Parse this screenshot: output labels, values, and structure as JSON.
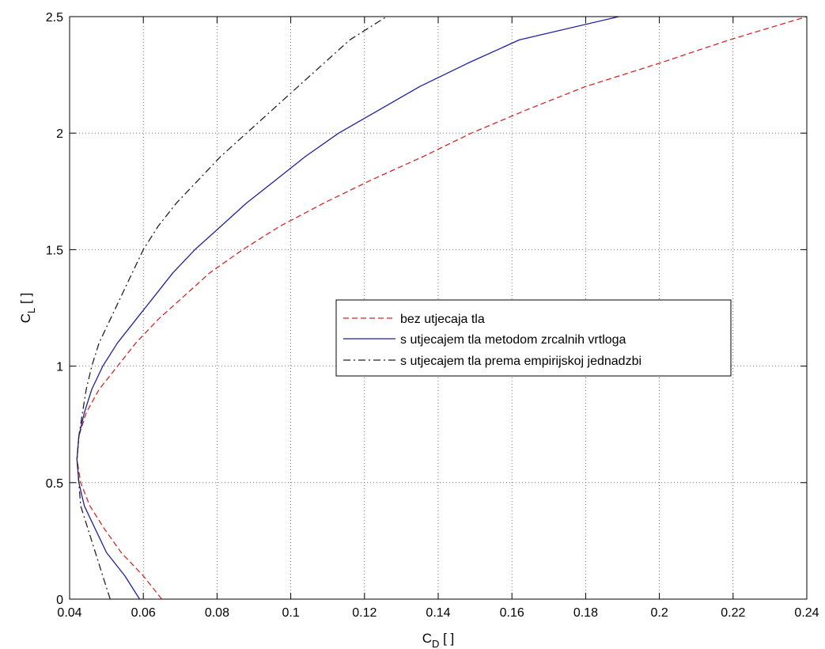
{
  "chart_data": {
    "type": "line",
    "title": "",
    "xlabel": {
      "main": "C",
      "sub": "D",
      "unit": " [ ]"
    },
    "ylabel": {
      "main": "C",
      "sub": "L",
      "unit": " [ ]"
    },
    "xlim": [
      0.04,
      0.24
    ],
    "ylim": [
      0,
      2.5
    ],
    "xticks": [
      0.04,
      0.06,
      0.08,
      0.1,
      0.12,
      0.14,
      0.16,
      0.18,
      0.2,
      0.22,
      0.24
    ],
    "xtick_labels": [
      "0.04",
      "0.06",
      "0.08",
      "0.1",
      "0.12",
      "0.14",
      "0.16",
      "0.18",
      "0.2",
      "0.22",
      "0.24"
    ],
    "yticks": [
      0,
      0.5,
      1,
      1.5,
      2,
      2.5
    ],
    "ytick_labels": [
      "0",
      "0.5",
      "1",
      "1.5",
      "2",
      "2.5"
    ],
    "grid": true,
    "legend_position": "center-right",
    "series": [
      {
        "name": "bez utjecaja tla",
        "color": "#d62728",
        "style": "dashed",
        "points": [
          [
            0.065,
            0
          ],
          [
            0.06,
            0.1
          ],
          [
            0.054,
            0.2
          ],
          [
            0.0495,
            0.3
          ],
          [
            0.0455,
            0.4
          ],
          [
            0.043,
            0.5
          ],
          [
            0.042,
            0.6
          ],
          [
            0.0425,
            0.7
          ],
          [
            0.0445,
            0.8
          ],
          [
            0.048,
            0.9
          ],
          [
            0.053,
            1.0
          ],
          [
            0.058,
            1.1
          ],
          [
            0.064,
            1.2
          ],
          [
            0.071,
            1.3
          ],
          [
            0.078,
            1.4
          ],
          [
            0.087,
            1.5
          ],
          [
            0.097,
            1.6
          ],
          [
            0.109,
            1.7
          ],
          [
            0.122,
            1.8
          ],
          [
            0.136,
            1.9
          ],
          [
            0.149,
            2.0
          ],
          [
            0.164,
            2.1
          ],
          [
            0.18,
            2.2
          ],
          [
            0.2,
            2.3
          ],
          [
            0.219,
            2.4
          ],
          [
            0.24,
            2.5
          ]
        ]
      },
      {
        "name": "s utjecajem tla metodom zrcalnih vrtloga",
        "color": "#1f1fa0",
        "style": "solid",
        "points": [
          [
            0.059,
            0
          ],
          [
            0.055,
            0.1
          ],
          [
            0.05,
            0.2
          ],
          [
            0.047,
            0.3
          ],
          [
            0.044,
            0.4
          ],
          [
            0.0425,
            0.5
          ],
          [
            0.042,
            0.6
          ],
          [
            0.0425,
            0.7
          ],
          [
            0.044,
            0.8
          ],
          [
            0.046,
            0.9
          ],
          [
            0.049,
            1.0
          ],
          [
            0.053,
            1.1
          ],
          [
            0.058,
            1.2
          ],
          [
            0.063,
            1.3
          ],
          [
            0.068,
            1.4
          ],
          [
            0.074,
            1.5
          ],
          [
            0.081,
            1.6
          ],
          [
            0.088,
            1.7
          ],
          [
            0.096,
            1.8
          ],
          [
            0.104,
            1.9
          ],
          [
            0.113,
            2.0
          ],
          [
            0.124,
            2.1
          ],
          [
            0.135,
            2.2
          ],
          [
            0.148,
            2.3
          ],
          [
            0.162,
            2.4
          ],
          [
            0.189,
            2.5
          ]
        ]
      },
      {
        "name": "s utjecajem tla prema empirijskoj jednadzbi",
        "color": "#222222",
        "style": "dashdot",
        "points": [
          [
            0.051,
            0
          ],
          [
            0.049,
            0.1
          ],
          [
            0.047,
            0.2
          ],
          [
            0.045,
            0.3
          ],
          [
            0.043,
            0.4
          ],
          [
            0.0425,
            0.5
          ],
          [
            0.042,
            0.6
          ],
          [
            0.0425,
            0.7
          ],
          [
            0.0435,
            0.8
          ],
          [
            0.0445,
            0.9
          ],
          [
            0.046,
            1.0
          ],
          [
            0.048,
            1.1
          ],
          [
            0.051,
            1.2
          ],
          [
            0.054,
            1.3
          ],
          [
            0.057,
            1.4
          ],
          [
            0.06,
            1.5
          ],
          [
            0.064,
            1.6
          ],
          [
            0.069,
            1.7
          ],
          [
            0.075,
            1.8
          ],
          [
            0.081,
            1.9
          ],
          [
            0.088,
            2.0
          ],
          [
            0.095,
            2.1
          ],
          [
            0.102,
            2.2
          ],
          [
            0.109,
            2.3
          ],
          [
            0.116,
            2.4
          ],
          [
            0.126,
            2.5
          ]
        ]
      }
    ]
  }
}
